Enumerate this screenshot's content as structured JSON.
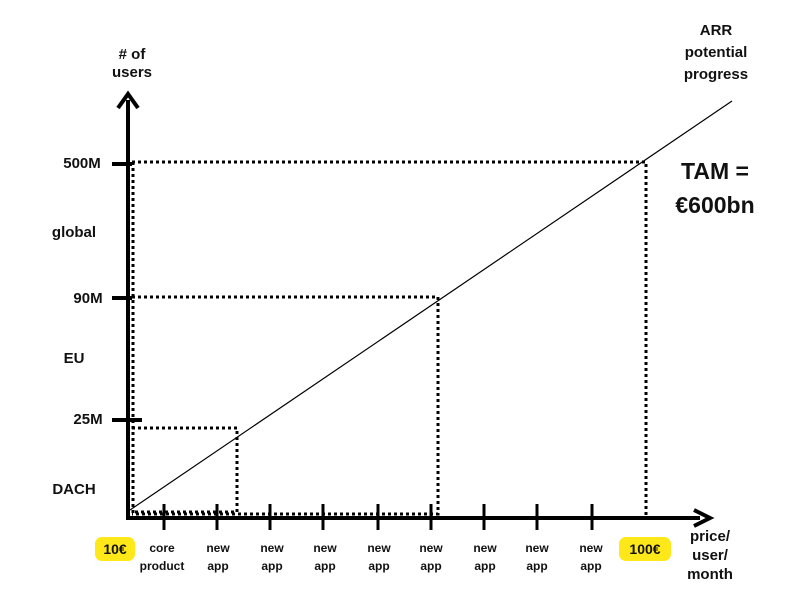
{
  "y_axis": {
    "title_line1": "# of",
    "title_line2": "users",
    "levels": [
      {
        "value": "500M",
        "region": "global"
      },
      {
        "value": "90M",
        "region": "EU"
      },
      {
        "value": "25M",
        "region": "DACH"
      }
    ]
  },
  "x_axis": {
    "title_line1": "price/",
    "title_line2": "user/",
    "title_line3": "month",
    "start_badge": "10€",
    "end_badge": "100€",
    "ticks": [
      {
        "line1": "core",
        "line2": "product"
      },
      {
        "line1": "new",
        "line2": "app"
      },
      {
        "line1": "new",
        "line2": "app"
      },
      {
        "line1": "new",
        "line2": "app"
      },
      {
        "line1": "new",
        "line2": "app"
      },
      {
        "line1": "new",
        "line2": "app"
      },
      {
        "line1": "new",
        "line2": "app"
      },
      {
        "line1": "new",
        "line2": "app"
      },
      {
        "line1": "new",
        "line2": "app"
      }
    ]
  },
  "trend_label": {
    "line1": "ARR",
    "line2": "potential",
    "line3": "progress"
  },
  "tam": {
    "line1": "TAM =",
    "line2": "€600bn"
  },
  "colors": {
    "axis": "#000000",
    "badge": "#ffe81a"
  }
}
